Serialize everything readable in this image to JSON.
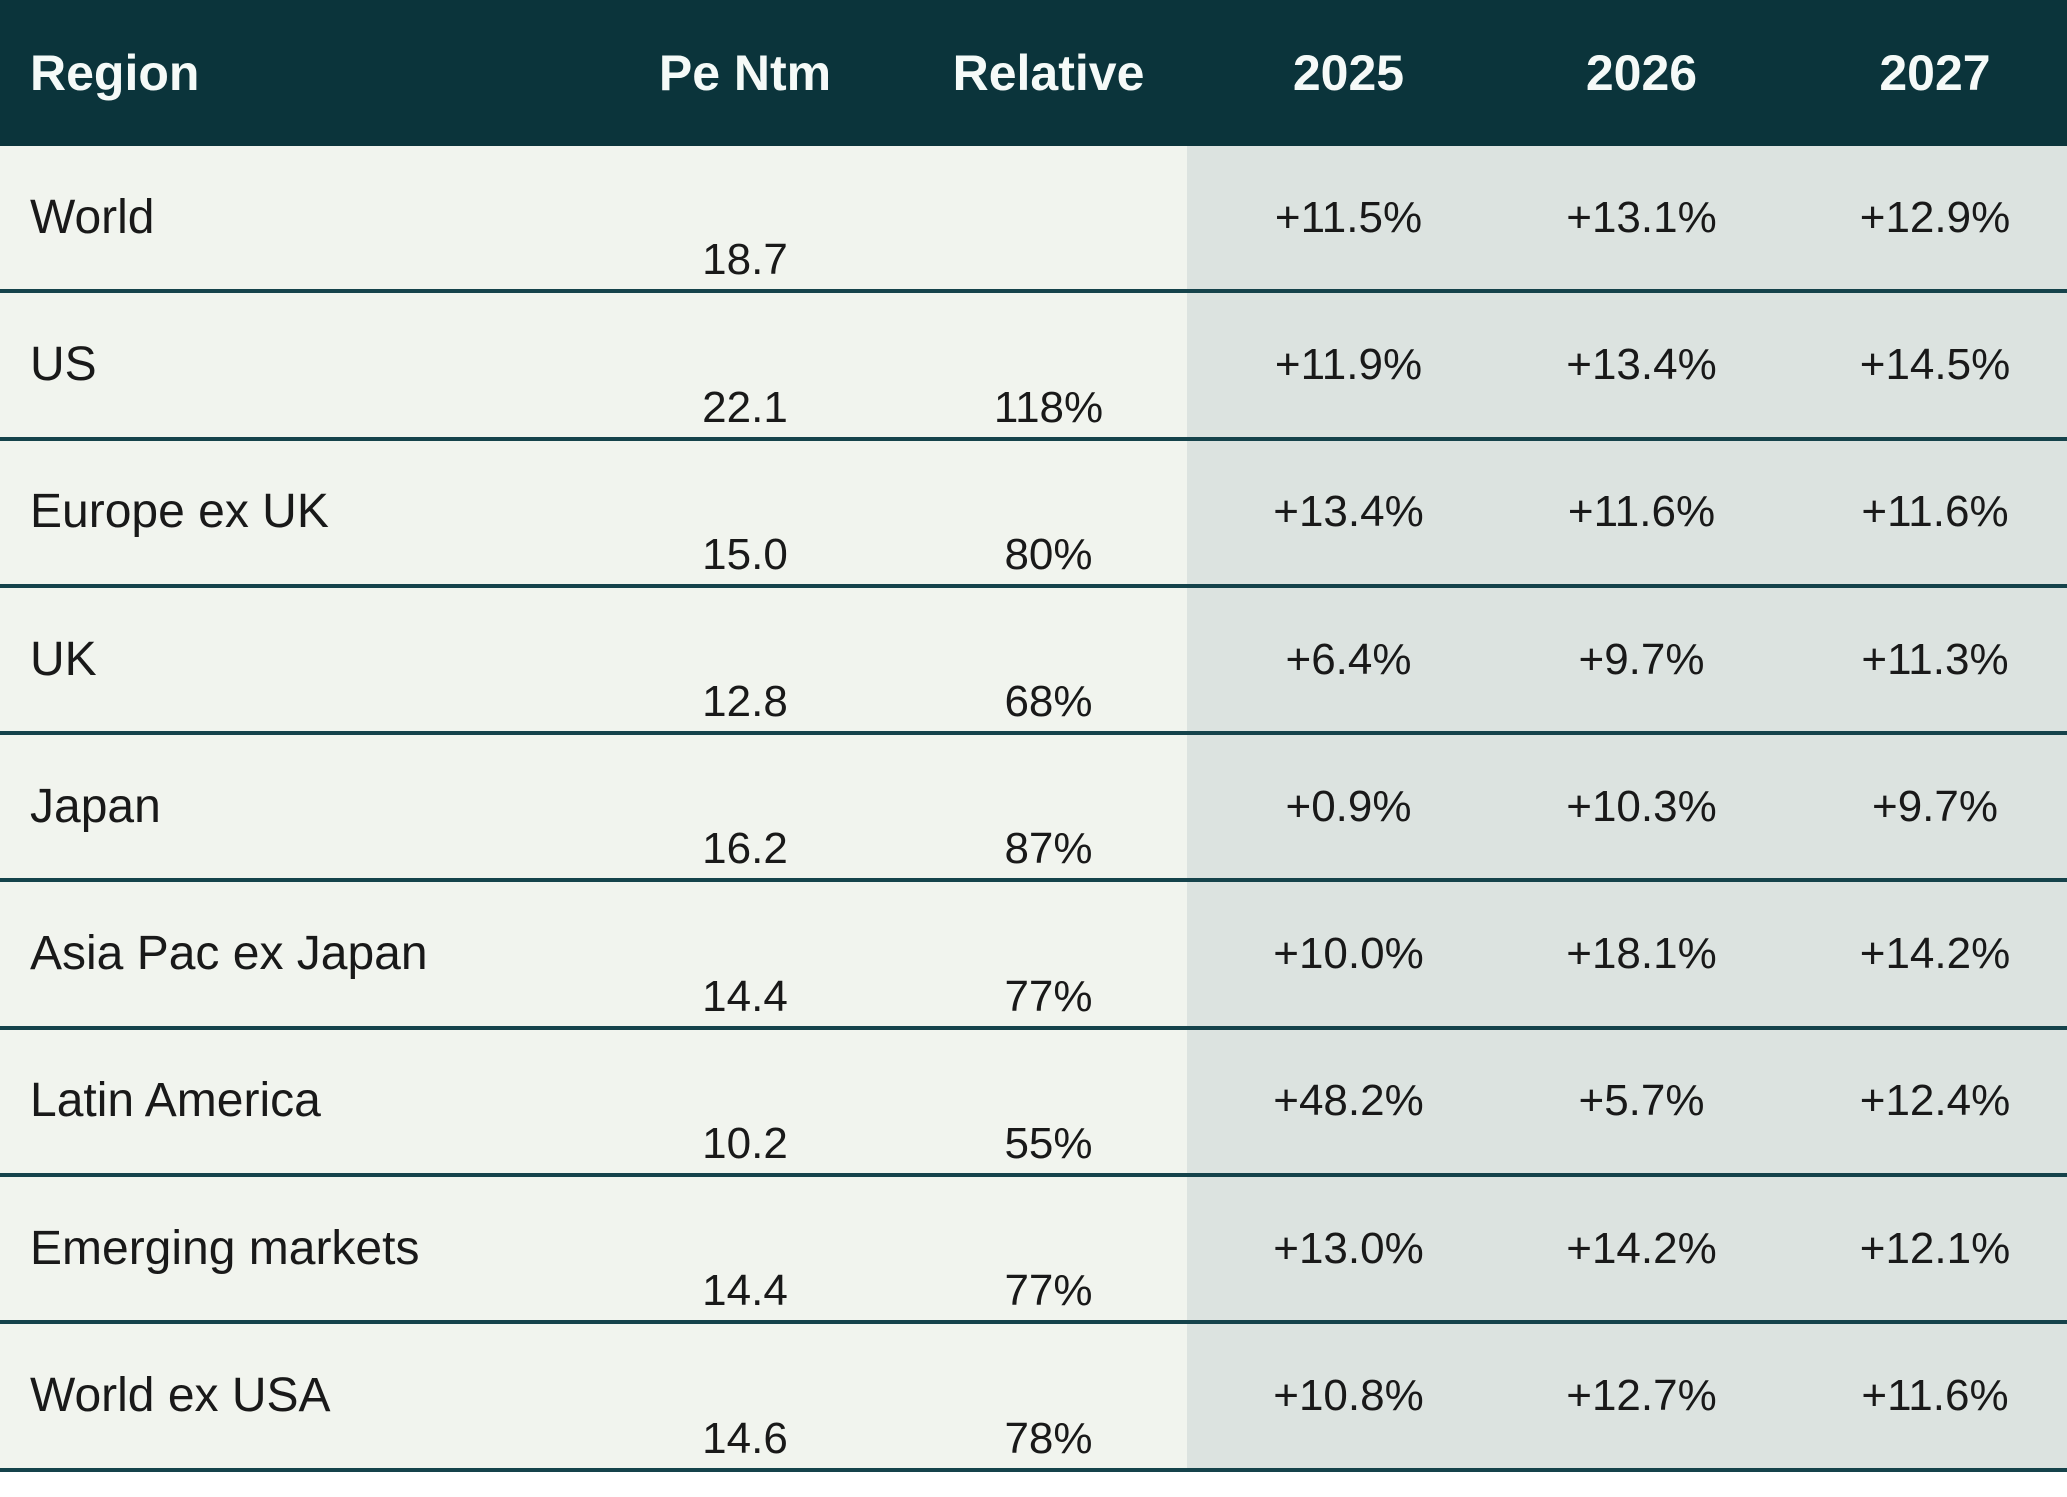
{
  "chart_data": {
    "type": "table",
    "columns": [
      "Region",
      "Pe Ntm",
      "Relative",
      "2025",
      "2026",
      "2027"
    ],
    "rows": [
      [
        "World",
        "18.7",
        "",
        "+11.5%",
        "+13.1%",
        "+12.9%"
      ],
      [
        "US",
        "22.1",
        "118%",
        "+11.9%",
        "+13.4%",
        "+14.5%"
      ],
      [
        "Europe ex UK",
        "15.0",
        "80%",
        "+13.4%",
        "+11.6%",
        "+11.6%"
      ],
      [
        "UK",
        "12.8",
        "68%",
        "+6.4%",
        "+9.7%",
        "+11.3%"
      ],
      [
        "Japan",
        "16.2",
        "87%",
        "+0.9%",
        "+10.3%",
        "+9.7%"
      ],
      [
        "Asia Pac ex Japan",
        "14.4",
        "77%",
        "+10.0%",
        "+18.1%",
        "+14.2%"
      ],
      [
        "Latin America",
        "10.2",
        "55%",
        "+48.2%",
        "+5.7%",
        "+12.4%"
      ],
      [
        "Emerging markets",
        "14.4",
        "77%",
        "+13.0%",
        "+14.2%",
        "+12.1%"
      ],
      [
        "World ex USA",
        "14.6",
        "78%",
        "+10.8%",
        "+12.7%",
        "+11.6%"
      ]
    ],
    "layout": {
      "grid": "horizontal row dividers only",
      "year_columns_shaded": true
    }
  },
  "colors": {
    "header_bg": "#0b343b",
    "header_text": "#f5faf8",
    "left_section_bg": "#f1f4ee",
    "year_section_bg": "#dce3e0",
    "row_divider": "#15434b",
    "body_text": "#191919"
  }
}
